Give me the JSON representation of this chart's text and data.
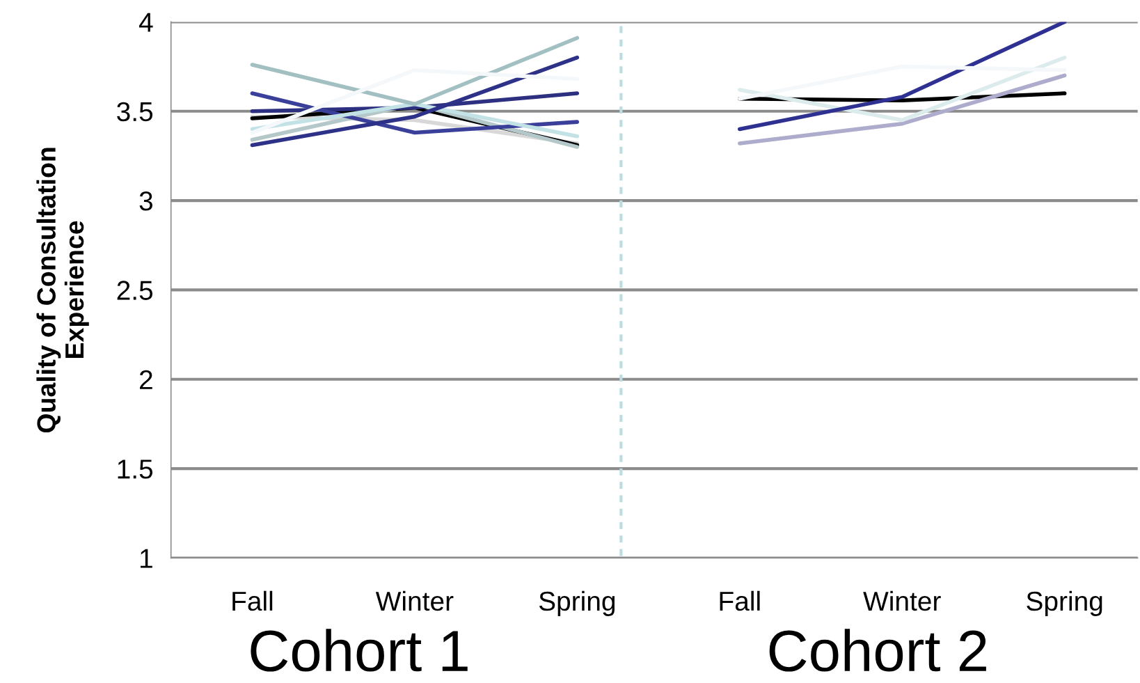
{
  "chart_data": {
    "type": "line",
    "ylabel": "Quality of Consultation\nExperience",
    "categories": [
      "Fall",
      "Winter",
      "Spring",
      "Fall",
      "Winter",
      "Spring"
    ],
    "ylim": [
      1,
      4
    ],
    "yticks": [
      1,
      1.5,
      2,
      2.5,
      3,
      3.5,
      4
    ],
    "grid": "y",
    "legend": false,
    "marker": "none",
    "line_style": "solid",
    "annotations": [
      "Cohort 1",
      "Cohort 2"
    ],
    "series": [
      {
        "color": "#d8d8d8",
        "values": [
          3.47,
          3.45,
          3.32,
          null,
          null,
          null
        ]
      },
      {
        "color": "#000000",
        "values": [
          3.46,
          3.52,
          3.31,
          null,
          null,
          null
        ]
      },
      {
        "color": "#b4c8ca",
        "values": [
          3.34,
          3.54,
          3.3,
          null,
          null,
          null
        ]
      },
      {
        "color": "#2d2f80",
        "values": [
          3.5,
          3.52,
          3.6,
          null,
          null,
          null
        ]
      },
      {
        "color": "#3a3f9a",
        "values": [
          3.6,
          3.38,
          3.44,
          null,
          null,
          null
        ]
      },
      {
        "color": "#c2e2e5",
        "values": [
          3.4,
          3.54,
          3.36,
          null,
          null,
          null
        ]
      },
      {
        "color": "#a2c0c2",
        "values": [
          3.76,
          3.54,
          3.91,
          null,
          null,
          null
        ]
      },
      {
        "color": "#2e3188",
        "values": [
          3.31,
          3.47,
          3.8,
          null,
          null,
          null
        ]
      },
      {
        "color": "#f5f8fa",
        "values": [
          3.38,
          3.73,
          3.68,
          null,
          null,
          null
        ]
      },
      {
        "color": "#000000",
        "values": [
          null,
          null,
          null,
          3.57,
          3.56,
          3.6
        ]
      },
      {
        "color": "#aeaccc",
        "values": [
          null,
          null,
          null,
          3.32,
          3.43,
          3.7
        ]
      },
      {
        "color": "#dcecec",
        "values": [
          null,
          null,
          null,
          3.62,
          3.45,
          3.8
        ]
      },
      {
        "color": "#2e3192",
        "values": [
          null,
          null,
          null,
          3.4,
          3.58,
          4.0
        ]
      },
      {
        "color": "#f5f8fa",
        "values": [
          null,
          null,
          null,
          3.57,
          3.75,
          3.73
        ]
      }
    ]
  }
}
